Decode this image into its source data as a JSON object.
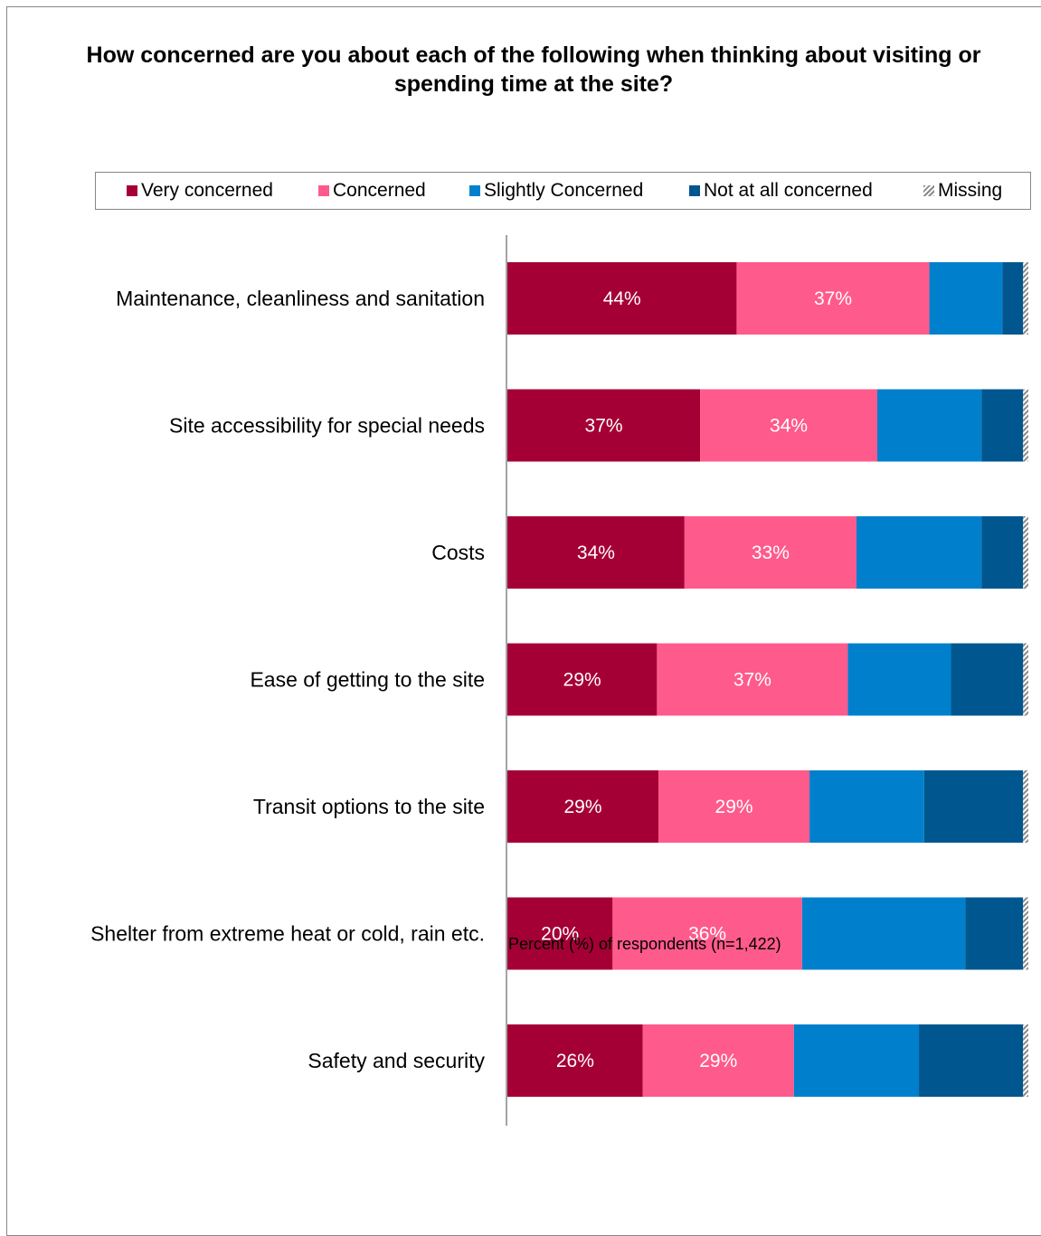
{
  "chart_data": {
    "type": "bar",
    "orientation": "horizontal",
    "stacked": true,
    "title": "How concerned are you about each of the following when thinking about visiting or spending time at the site?",
    "xlabel": "Percent (%) of respondents (n=1,422)",
    "xlim": [
      0,
      100
    ],
    "legend_position": "top",
    "categories": [
      "Maintenance, cleanliness and sanitation",
      "Site accessibility for special needs",
      "Costs",
      "Ease of getting to the site",
      "Transit options to the site",
      "Shelter from extreme heat or cold, rain etc.",
      "Safety and security"
    ],
    "series": [
      {
        "name": "Very concerned",
        "color": "#A50036",
        "values": [
          44,
          37,
          34,
          29,
          29,
          20,
          26
        ],
        "show_labels": true
      },
      {
        "name": "Concerned",
        "color": "#FF5A8C",
        "values": [
          37,
          34,
          33,
          37,
          29,
          36,
          29
        ],
        "show_labels": true
      },
      {
        "name": "Slightly Concerned",
        "color": "#0080CC",
        "values": [
          14,
          20,
          24,
          20,
          22,
          31,
          24
        ],
        "show_labels": false
      },
      {
        "name": "Not at all concerned",
        "color": "#00568F",
        "values": [
          4,
          8,
          8,
          14,
          19,
          11,
          20
        ],
        "show_labels": false
      },
      {
        "name": "Missing",
        "color": "pattern-hatch-gray",
        "values": [
          1,
          1,
          1,
          1,
          1,
          1,
          1
        ],
        "show_labels": false
      }
    ]
  }
}
